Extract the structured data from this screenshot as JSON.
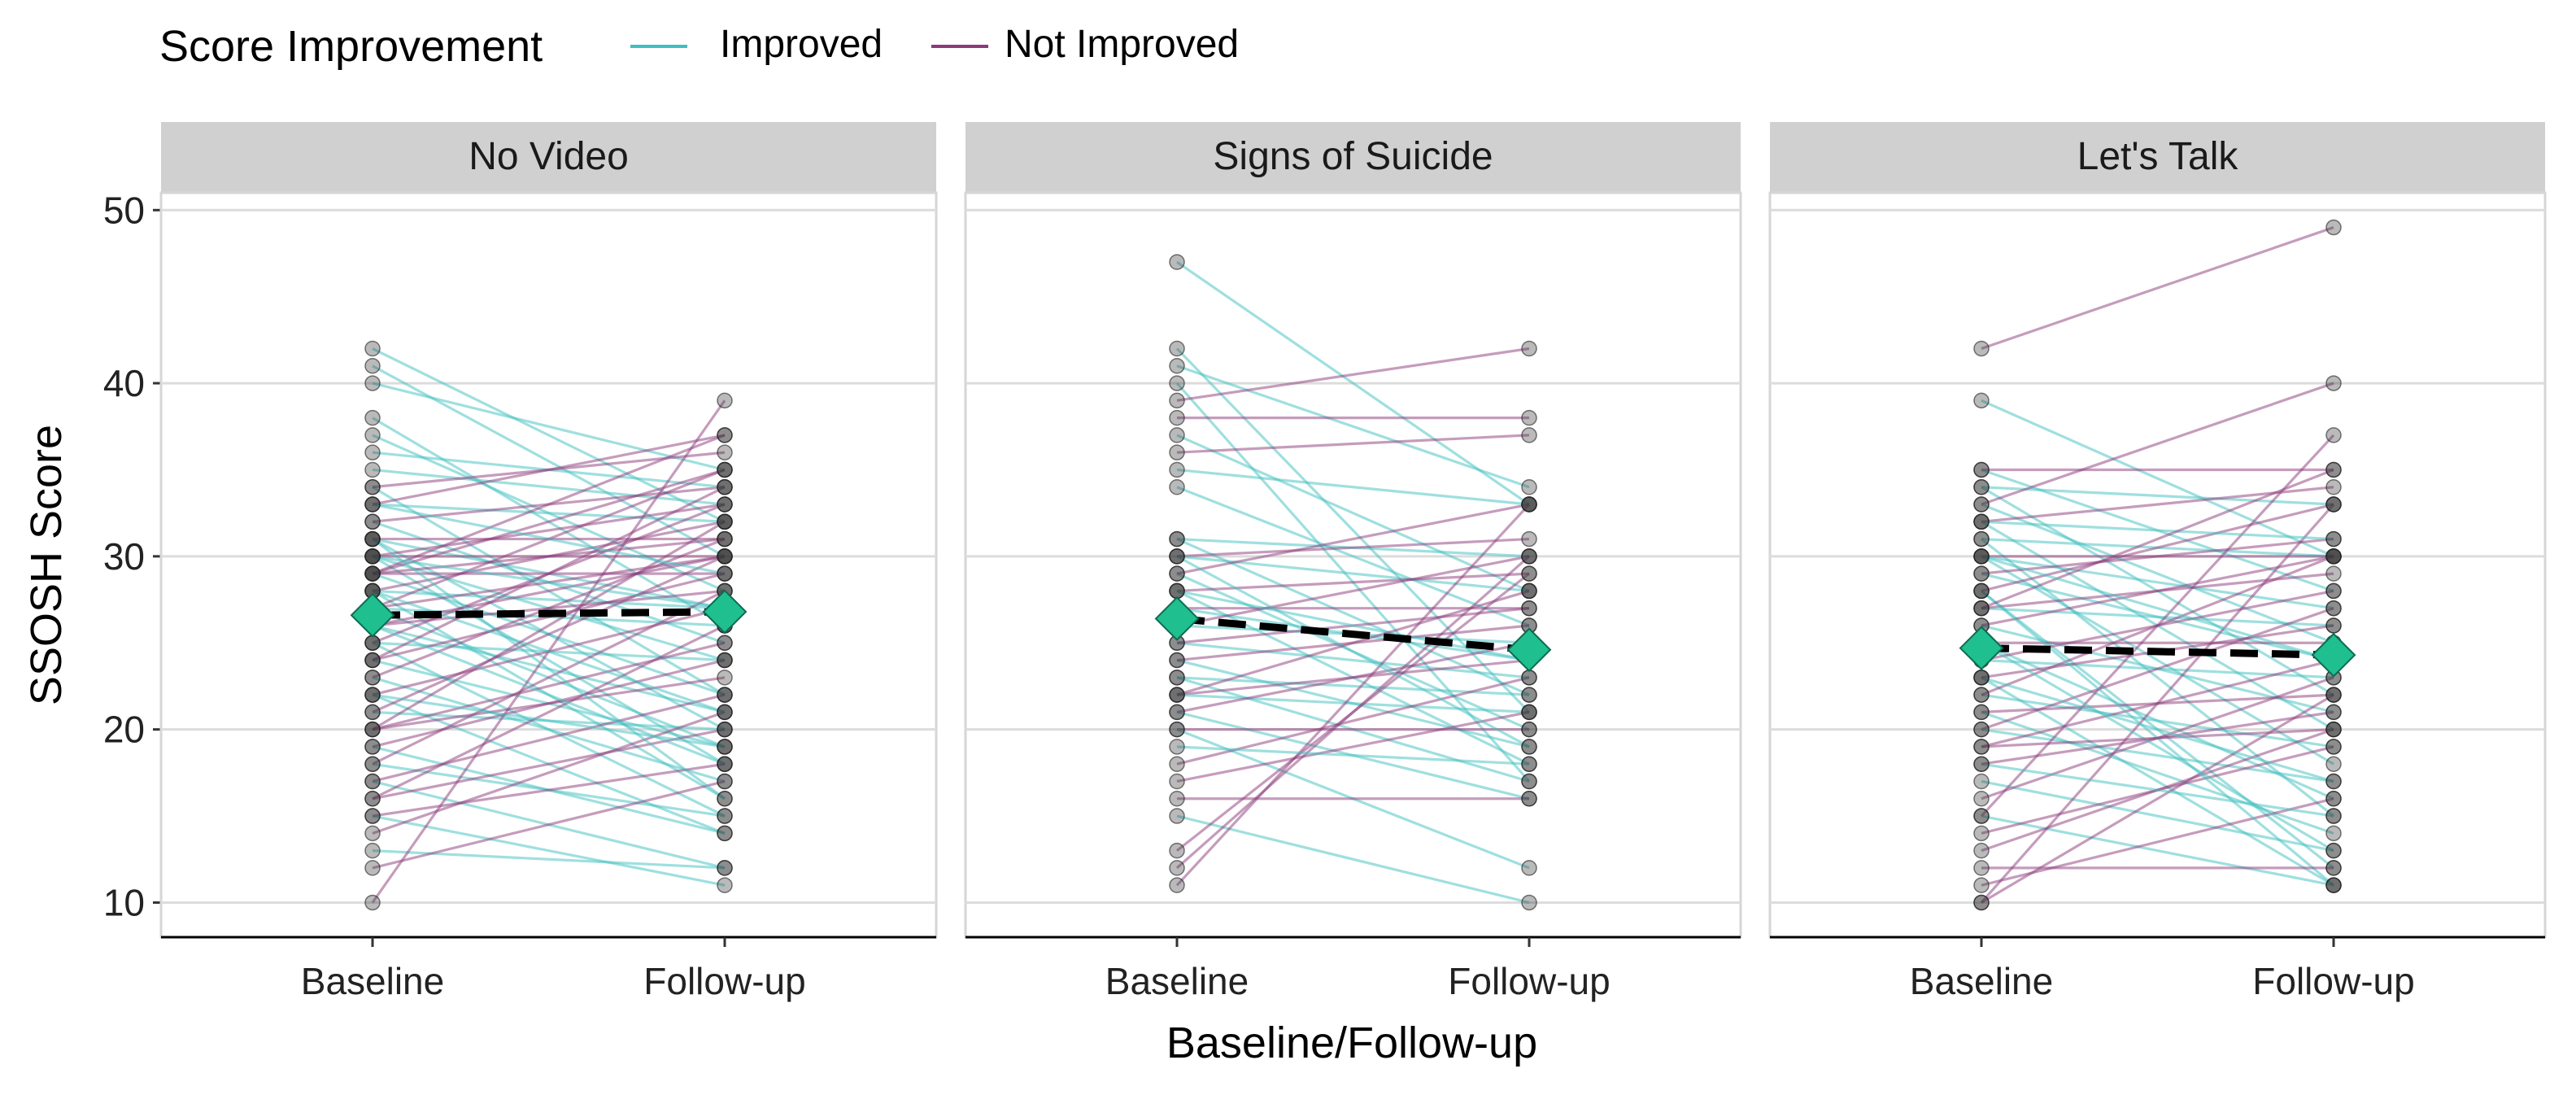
{
  "chart_data": {
    "type": "line",
    "subtype": "faceted paired slope plot with group means",
    "ylabel": "SSOSH Score",
    "xlabel": "Baseline/Follow-up",
    "ylim": [
      8,
      51
    ],
    "yticks": [
      10,
      20,
      30,
      40,
      50
    ],
    "categories": [
      "Baseline",
      "Follow-up"
    ],
    "legend": {
      "title": "Score Improvement",
      "position": "top-left",
      "entries": [
        {
          "label": "Improved",
          "color": "#3fbfbf"
        },
        {
          "label": "Not Improved",
          "color": "#8b3a7a"
        }
      ]
    },
    "colors": {
      "improved": "#3fbfbf",
      "not_improved": "#8b3a7a",
      "mean_marker": "#1fbf8f",
      "strip": "#d0d0d0",
      "grid": "#dcdcdc"
    },
    "panels": [
      {
        "title": "No Video",
        "mean": {
          "baseline": 26.6,
          "followup": 26.8
        },
        "pairs": [
          [
            42,
            32,
            "i"
          ],
          [
            41,
            30,
            "i"
          ],
          [
            40,
            35,
            "i"
          ],
          [
            38,
            26,
            "i"
          ],
          [
            37,
            28,
            "i"
          ],
          [
            36,
            34,
            "i"
          ],
          [
            35,
            33,
            "i"
          ],
          [
            34,
            22,
            "i"
          ],
          [
            34,
            36,
            "n"
          ],
          [
            33,
            32,
            "i"
          ],
          [
            33,
            37,
            "n"
          ],
          [
            32,
            25,
            "i"
          ],
          [
            32,
            34,
            "n"
          ],
          [
            31,
            31,
            "n"
          ],
          [
            31,
            27,
            "i"
          ],
          [
            31,
            20,
            "i"
          ],
          [
            30,
            30,
            "n"
          ],
          [
            30,
            33,
            "n"
          ],
          [
            30,
            24,
            "i"
          ],
          [
            30,
            18,
            "i"
          ],
          [
            29,
            35,
            "n"
          ],
          [
            29,
            29,
            "n"
          ],
          [
            29,
            22,
            "i"
          ],
          [
            29,
            31,
            "n"
          ],
          [
            28,
            27,
            "i"
          ],
          [
            28,
            32,
            "n"
          ],
          [
            28,
            16,
            "i"
          ],
          [
            27,
            35,
            "n"
          ],
          [
            27,
            26,
            "i"
          ],
          [
            27,
            19,
            "i"
          ],
          [
            26,
            30,
            "n"
          ],
          [
            26,
            28,
            "n"
          ],
          [
            26,
            21,
            "i"
          ],
          [
            25,
            33,
            "n"
          ],
          [
            25,
            24,
            "i"
          ],
          [
            25,
            15,
            "i"
          ],
          [
            24,
            29,
            "n"
          ],
          [
            24,
            19,
            "i"
          ],
          [
            23,
            31,
            "n"
          ],
          [
            23,
            17,
            "i"
          ],
          [
            22,
            27,
            "n"
          ],
          [
            22,
            14,
            "i"
          ],
          [
            21,
            30,
            "n"
          ],
          [
            21,
            20,
            "i"
          ],
          [
            20,
            25,
            "n"
          ],
          [
            20,
            23,
            "n"
          ],
          [
            19,
            24,
            "n"
          ],
          [
            19,
            14,
            "i"
          ],
          [
            18,
            28,
            "n"
          ],
          [
            18,
            15,
            "i"
          ],
          [
            17,
            22,
            "n"
          ],
          [
            17,
            12,
            "i"
          ],
          [
            16,
            26,
            "n"
          ],
          [
            16,
            20,
            "n"
          ],
          [
            15,
            18,
            "n"
          ],
          [
            15,
            11,
            "i"
          ],
          [
            14,
            21,
            "n"
          ],
          [
            13,
            12,
            "i"
          ],
          [
            12,
            17,
            "n"
          ],
          [
            10,
            39,
            "n"
          ],
          [
            29,
            37,
            "n"
          ],
          [
            27,
            30,
            "n"
          ],
          [
            31,
            16,
            "i"
          ],
          [
            28,
            21,
            "i"
          ],
          [
            24,
            34,
            "n"
          ],
          [
            22,
            19,
            "i"
          ],
          [
            20,
            32,
            "n"
          ],
          [
            33,
            29,
            "i"
          ],
          [
            26,
            18,
            "i"
          ],
          [
            30,
            27,
            "i"
          ]
        ]
      },
      {
        "title": "Signs of Suicide",
        "mean": {
          "baseline": 26.4,
          "followup": 24.6
        },
        "pairs": [
          [
            47,
            33,
            "i"
          ],
          [
            42,
            21,
            "i"
          ],
          [
            41,
            34,
            "i"
          ],
          [
            40,
            17,
            "i"
          ],
          [
            39,
            42,
            "n"
          ],
          [
            38,
            38,
            "n"
          ],
          [
            37,
            28,
            "i"
          ],
          [
            36,
            37,
            "n"
          ],
          [
            35,
            33,
            "i"
          ],
          [
            34,
            26,
            "i"
          ],
          [
            31,
            30,
            "i"
          ],
          [
            31,
            22,
            "i"
          ],
          [
            30,
            31,
            "n"
          ],
          [
            30,
            28,
            "i"
          ],
          [
            29,
            20,
            "i"
          ],
          [
            29,
            33,
            "n"
          ],
          [
            28,
            29,
            "n"
          ],
          [
            28,
            18,
            "i"
          ],
          [
            27,
            27,
            "n"
          ],
          [
            27,
            24,
            "i"
          ],
          [
            26,
            30,
            "n"
          ],
          [
            26,
            25,
            "i"
          ],
          [
            25,
            23,
            "i"
          ],
          [
            25,
            27,
            "n"
          ],
          [
            24,
            19,
            "i"
          ],
          [
            24,
            26,
            "n"
          ],
          [
            23,
            22,
            "i"
          ],
          [
            23,
            17,
            "i"
          ],
          [
            22,
            24,
            "n"
          ],
          [
            22,
            21,
            "i"
          ],
          [
            21,
            25,
            "n"
          ],
          [
            21,
            16,
            "i"
          ],
          [
            20,
            20,
            "n"
          ],
          [
            20,
            12,
            "i"
          ],
          [
            18,
            23,
            "n"
          ],
          [
            17,
            21,
            "n"
          ],
          [
            16,
            16,
            "n"
          ],
          [
            15,
            10,
            "i"
          ],
          [
            13,
            29,
            "n"
          ],
          [
            12,
            30,
            "n"
          ],
          [
            11,
            33,
            "n"
          ],
          [
            28,
            24,
            "i"
          ],
          [
            30,
            19,
            "i"
          ],
          [
            22,
            28,
            "n"
          ],
          [
            19,
            18,
            "i"
          ]
        ]
      },
      {
        "title": "Let's Talk",
        "mean": {
          "baseline": 24.7,
          "followup": 24.3
        },
        "pairs": [
          [
            42,
            49,
            "n"
          ],
          [
            39,
            30,
            "i"
          ],
          [
            35,
            35,
            "n"
          ],
          [
            35,
            28,
            "i"
          ],
          [
            34,
            22,
            "i"
          ],
          [
            34,
            33,
            "i"
          ],
          [
            33,
            40,
            "n"
          ],
          [
            33,
            25,
            "i"
          ],
          [
            32,
            34,
            "n"
          ],
          [
            32,
            20,
            "i"
          ],
          [
            31,
            30,
            "i"
          ],
          [
            31,
            15,
            "i"
          ],
          [
            30,
            30,
            "n"
          ],
          [
            30,
            27,
            "i"
          ],
          [
            30,
            18,
            "i"
          ],
          [
            29,
            31,
            "n"
          ],
          [
            29,
            24,
            "i"
          ],
          [
            28,
            33,
            "n"
          ],
          [
            28,
            12,
            "i"
          ],
          [
            27,
            26,
            "i"
          ],
          [
            27,
            29,
            "n"
          ],
          [
            26,
            21,
            "i"
          ],
          [
            26,
            30,
            "n"
          ],
          [
            25,
            25,
            "n"
          ],
          [
            25,
            16,
            "i"
          ],
          [
            24,
            28,
            "n"
          ],
          [
            24,
            23,
            "i"
          ],
          [
            23,
            11,
            "i"
          ],
          [
            23,
            26,
            "n"
          ],
          [
            22,
            19,
            "i"
          ],
          [
            22,
            30,
            "n"
          ],
          [
            21,
            22,
            "n"
          ],
          [
            21,
            14,
            "i"
          ],
          [
            20,
            27,
            "n"
          ],
          [
            20,
            17,
            "i"
          ],
          [
            19,
            24,
            "n"
          ],
          [
            18,
            21,
            "n"
          ],
          [
            17,
            13,
            "i"
          ],
          [
            16,
            23,
            "n"
          ],
          [
            15,
            37,
            "n"
          ],
          [
            15,
            11,
            "i"
          ],
          [
            14,
            19,
            "n"
          ],
          [
            13,
            20,
            "n"
          ],
          [
            11,
            16,
            "n"
          ],
          [
            10,
            33,
            "n"
          ],
          [
            10,
            22,
            "n"
          ],
          [
            25,
            13,
            "i"
          ],
          [
            28,
            11,
            "i"
          ],
          [
            19,
            20,
            "n"
          ],
          [
            32,
            31,
            "i"
          ],
          [
            27,
            35,
            "n"
          ],
          [
            23,
            17,
            "i"
          ],
          [
            30,
            24,
            "i"
          ],
          [
            18,
            15,
            "i"
          ],
          [
            12,
            12,
            "n"
          ]
        ]
      }
    ]
  }
}
